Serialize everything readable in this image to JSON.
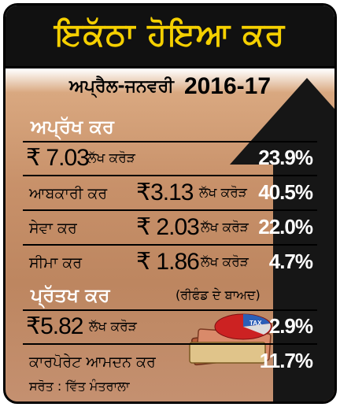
{
  "title": "ਇਕੱਠਾ ਹੋਇਆ ਕਰ",
  "period": {
    "label": "ਅਪ੍ਰੈਲ-ਜਨਵਰੀ",
    "years": "2016-17"
  },
  "indirect": {
    "heading": "ਅਪ੍ਰੱਖ ਕਰ",
    "total": {
      "amount": "₹ 7.03",
      "unit": "ਲੱਖ ਕਰੋੜ",
      "pct": "23.9%"
    },
    "rows": [
      {
        "label": "ਆਬਕਾਰੀ ਕਰ",
        "amount": "₹3.13",
        "unit": "ਲੱਖ ਕਰੋੜ",
        "pct": "40.5%"
      },
      {
        "label": "ਸੇਵਾ ਕਰ",
        "amount": "₹ 2.03",
        "unit": "ਲੱਖ ਕਰੋੜ",
        "pct": "22.0%"
      },
      {
        "label": "ਸੀਮਾ ਕਰ",
        "amount": "₹ 1.86",
        "unit": "ਲੱਖ ਕਰੋੜ",
        "pct": "4.7%"
      }
    ]
  },
  "direct": {
    "heading": "ਪ੍ਰੱਤਖ ਕਰ",
    "note": "(ਰੀਫੰਡ ਦੇ ਬਾਅਦ)",
    "total": {
      "amount": "₹5.82",
      "unit": "ਲੱਖ ਕਰੋੜ",
      "pct": "2.9%"
    },
    "corporate": {
      "label": "ਕਾਰਪੋਰੇਟ ਆਮਦਨ ਕਰ",
      "pct": "11.7%"
    }
  },
  "source": "ਸਰੋਤ : ਵਿੱਤ ਮੰਤਰਾਲਾ",
  "illustration": {
    "name": "money-and-pie-chart",
    "pie_label": "TAX"
  },
  "colors": {
    "title_text": "#f5d000",
    "title_bg": "#111111",
    "arrow": "#161616",
    "panel": "#c8916a"
  }
}
